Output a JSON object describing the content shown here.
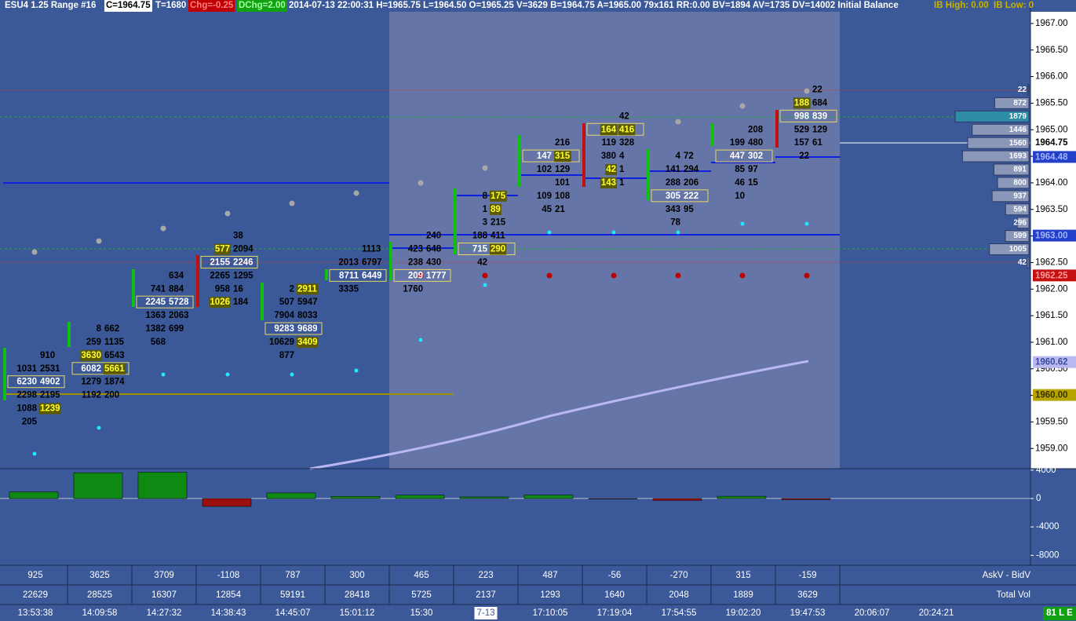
{
  "header": {
    "symbol": "ESU4  1.25 Range  #16",
    "close": "C=1964.75",
    "trades": "T=1680",
    "chg": "Chg=-0.25",
    "dchg": "DChg=2.00",
    "info": "2014-07-13 22:00:31 H=1965.75 L=1964.50 O=1965.25 V=3629 B=1964.75 A=1965.00 79x161 RR:0.00 BV=1894 AV=1735 DV=14002 Initial Balance",
    "ib_high": "IB High: 0.00",
    "ib_low": "IB Low: 0"
  },
  "price_axis": {
    "ylim": [
      1958.62,
      1967.22
    ],
    "ticks": [
      {
        "value": 1967,
        "label": "1967.00"
      },
      {
        "value": 1966.5,
        "label": "1966.50"
      },
      {
        "value": 1966,
        "label": "1966.00"
      },
      {
        "value": 1965.5,
        "label": "1965.50"
      },
      {
        "value": 1965,
        "label": "1965.00"
      },
      {
        "value": 1964.5,
        "label": "1964.50"
      },
      {
        "value": 1964,
        "label": "1964.00"
      },
      {
        "value": 1963.5,
        "label": "1963.50"
      },
      {
        "value": 1963,
        "label": "1963.00"
      },
      {
        "value": 1962.5,
        "label": "1962.50"
      },
      {
        "value": 1962,
        "label": "1962.00"
      },
      {
        "value": 1961.5,
        "label": "1961.50"
      },
      {
        "value": 1961,
        "label": "1961.00"
      },
      {
        "value": 1960.5,
        "label": "1960.50"
      },
      {
        "value": 1960,
        "label": "1960.00"
      },
      {
        "value": 1959.5,
        "label": "1959.50"
      },
      {
        "value": 1959,
        "label": "1959.00"
      }
    ],
    "markers": [
      {
        "value": 1964.75,
        "label": "1964.75",
        "bg": "#ffffff",
        "fg": "#000000"
      },
      {
        "value": 1964.48,
        "label": "1964.48",
        "bg": "#2440c8",
        "fg": "#9fb4ff"
      },
      {
        "value": 1963,
        "label": "1963.00",
        "bg": "#2440c8",
        "fg": "#9fb4ff"
      },
      {
        "value": 1962.25,
        "label": "1962.25",
        "bg": "#c41010",
        "fg": "#ff9a9a"
      },
      {
        "value": 1960.62,
        "label": "1960.62",
        "bg": "#b9b8f2",
        "fg": "#3b4d9a"
      },
      {
        "value": 1960,
        "label": "1960.00",
        "bg": "#b8a400",
        "fg": "#3a3300"
      }
    ]
  },
  "footprint": {
    "columns": [
      {
        "cells": [
          {
            "price": 1960.75,
            "ask": "910"
          },
          {
            "price": 1960.5,
            "bid": "1031",
            "ask": "2531"
          },
          {
            "price": 1960.25,
            "bid": "6230",
            "ask": "4902",
            "box": true
          },
          {
            "price": 1960,
            "bid": "2298",
            "ask": "2195"
          },
          {
            "price": 1959.75,
            "bid": "1088",
            "ask": "1239",
            "hl": "ask"
          },
          {
            "price": 1959.5,
            "bid": "205"
          }
        ]
      },
      {
        "cells": [
          {
            "price": 1961.25,
            "bid": "8",
            "ask": "662"
          },
          {
            "price": 1961,
            "bid": "259",
            "ask": "1135"
          },
          {
            "price": 1960.75,
            "bid": "3630",
            "ask": "6543",
            "hl": "bid"
          },
          {
            "price": 1960.5,
            "bid": "6082",
            "ask": "5661",
            "box": true,
            "hl": "ask"
          },
          {
            "price": 1960.25,
            "bid": "1279",
            "ask": "1874"
          },
          {
            "price": 1960,
            "bid": "1192",
            "ask": "200"
          }
        ]
      },
      {
        "cells": [
          {
            "price": 1962.25,
            "ask": "634"
          },
          {
            "price": 1962,
            "bid": "741",
            "ask": "884"
          },
          {
            "price": 1961.75,
            "bid": "2245",
            "ask": "5728",
            "box": true
          },
          {
            "price": 1961.5,
            "bid": "1363",
            "ask": "2063"
          },
          {
            "price": 1961.25,
            "bid": "1382",
            "ask": "699"
          },
          {
            "price": 1961,
            "bid": "568"
          }
        ]
      },
      {
        "cells": [
          {
            "price": 1963,
            "ask": "38"
          },
          {
            "price": 1962.75,
            "bid": "577",
            "ask": "2094",
            "hl": "bid"
          },
          {
            "price": 1962.5,
            "bid": "2155",
            "ask": "2246",
            "box": true
          },
          {
            "price": 1962.25,
            "bid": "2265",
            "ask": "1295"
          },
          {
            "price": 1962,
            "bid": "958",
            "ask": "16"
          },
          {
            "price": 1961.75,
            "bid": "1026",
            "ask": "184",
            "hl": "bid"
          }
        ]
      },
      {
        "cells": [
          {
            "price": 1962,
            "bid": "2",
            "ask": "2911",
            "hl": "ask"
          },
          {
            "price": 1961.75,
            "bid": "507",
            "ask": "5947"
          },
          {
            "price": 1961.5,
            "bid": "7904",
            "ask": "8033"
          },
          {
            "price": 1961.25,
            "bid": "9283",
            "ask": "9689",
            "box": true
          },
          {
            "price": 1961,
            "bid": "10629",
            "ask": "3409",
            "hl": "ask"
          },
          {
            "price": 1960.75,
            "bid": "877"
          }
        ]
      },
      {
        "cells": [
          {
            "price": 1962.75,
            "ask": "1113"
          },
          {
            "price": 1962.5,
            "bid": "2013",
            "ask": "6797"
          },
          {
            "price": 1962.25,
            "bid": "8711",
            "ask": "6449",
            "box": true
          },
          {
            "price": 1962,
            "bid": "3335"
          }
        ]
      },
      {
        "cells": [
          {
            "price": 1963,
            "ask": "240"
          },
          {
            "price": 1962.75,
            "bid": "423",
            "ask": "648"
          },
          {
            "price": 1962.5,
            "bid": "238",
            "ask": "430"
          },
          {
            "price": 1962.25,
            "bid": "209",
            "ask": "1777",
            "box": true
          },
          {
            "price": 1962,
            "bid": "1760"
          }
        ]
      },
      {
        "cells": [
          {
            "price": 1963.75,
            "bid": "8",
            "ask": "175",
            "hl": "ask"
          },
          {
            "price": 1963.5,
            "bid": "1",
            "ask": "89",
            "hl": "ask"
          },
          {
            "price": 1963.25,
            "bid": "3",
            "ask": "215"
          },
          {
            "price": 1963,
            "bid": "188",
            "ask": "411"
          },
          {
            "price": 1962.75,
            "bid": "715",
            "ask": "290",
            "box": true,
            "hl": "ask"
          },
          {
            "price": 1962.5,
            "bid": "42"
          }
        ]
      },
      {
        "cells": [
          {
            "price": 1964.75,
            "ask": "216"
          },
          {
            "price": 1964.5,
            "bid": "147",
            "ask": "315",
            "box": true,
            "hl": "ask"
          },
          {
            "price": 1964.25,
            "bid": "102",
            "ask": "129"
          },
          {
            "price": 1964,
            "ask": "101"
          },
          {
            "price": 1963.75,
            "bid": "109",
            "ask": "108"
          },
          {
            "price": 1963.5,
            "bid": "45",
            "ask": "21"
          }
        ]
      },
      {
        "cells": [
          {
            "price": 1965.25,
            "ask": "42"
          },
          {
            "price": 1965,
            "bid": "164",
            "ask": "416",
            "box": true,
            "hl": "both"
          },
          {
            "price": 1964.75,
            "bid": "119",
            "ask": "328"
          },
          {
            "price": 1964.5,
            "bid": "380",
            "ask": "4"
          },
          {
            "price": 1964.25,
            "bid": "42",
            "ask": "1",
            "hl": "bid"
          },
          {
            "price": 1964,
            "bid": "143",
            "ask": "1",
            "hl": "bid"
          }
        ]
      },
      {
        "cells": [
          {
            "price": 1964.5,
            "bid": "4",
            "ask": "72"
          },
          {
            "price": 1964.25,
            "bid": "141",
            "ask": "294"
          },
          {
            "price": 1964,
            "bid": "288",
            "ask": "206"
          },
          {
            "price": 1963.75,
            "bid": "305",
            "ask": "222",
            "box": true
          },
          {
            "price": 1963.5,
            "bid": "343",
            "ask": "95"
          },
          {
            "price": 1963.25,
            "bid": "78"
          }
        ]
      },
      {
        "cells": [
          {
            "price": 1965,
            "ask": "208"
          },
          {
            "price": 1964.75,
            "bid": "199",
            "ask": "480"
          },
          {
            "price": 1964.5,
            "bid": "447",
            "ask": "302",
            "box": true
          },
          {
            "price": 1964.25,
            "bid": "85",
            "ask": "97"
          },
          {
            "price": 1964,
            "bid": "46",
            "ask": "15"
          },
          {
            "price": 1963.75,
            "bid": "10"
          }
        ]
      },
      {
        "cells": [
          {
            "price": 1965.75,
            "ask": "22"
          },
          {
            "price": 1965.5,
            "bid": "188",
            "ask": "684",
            "hl": "bid"
          },
          {
            "price": 1965.25,
            "bid": "998",
            "ask": "839",
            "box": true
          },
          {
            "price": 1965,
            "bid": "529",
            "ask": "129"
          },
          {
            "price": 1964.75,
            "bid": "157",
            "ask": "61"
          },
          {
            "price": 1964.5,
            "bid": "22"
          }
        ]
      }
    ]
  },
  "volume_profile": {
    "color": "#8b97b8",
    "poc_color": "#2f8ca6",
    "levels": [
      {
        "price": 1965.75,
        "volume": 22
      },
      {
        "price": 1965.5,
        "volume": 872
      },
      {
        "price": 1965.25,
        "volume": 1879
      },
      {
        "price": 1965,
        "volume": 1446
      },
      {
        "price": 1964.75,
        "volume": 1560
      },
      {
        "price": 1964.5,
        "volume": 1693
      },
      {
        "price": 1964.25,
        "volume": 891
      },
      {
        "price": 1964,
        "volume": 800
      },
      {
        "price": 1963.75,
        "volume": 937
      },
      {
        "price": 1963.5,
        "volume": 594
      },
      {
        "price": 1963.25,
        "volume": 296
      },
      {
        "price": 1963,
        "volume": 599
      },
      {
        "price": 1962.75,
        "volume": 1005
      },
      {
        "price": 1962.5,
        "volume": 42
      }
    ]
  },
  "delta_pane": {
    "ylim": [
      -9400,
      4200
    ],
    "yticks": [
      4000,
      0,
      -4000,
      -8000
    ],
    "up_color": "#0e8a12",
    "down_color": "#9a1010"
  },
  "table": {
    "row_labels": [
      "AskV - BidV",
      "Total Vol"
    ],
    "delta": [
      925,
      3625,
      3709,
      -1108,
      787,
      300,
      465,
      223,
      487,
      -56,
      -270,
      315,
      -159
    ],
    "total_vol": [
      22629,
      28525,
      16307,
      12854,
      59191,
      28418,
      5725,
      2137,
      1293,
      1640,
      2048,
      1889,
      3629
    ]
  },
  "time_axis": [
    "13:53:38",
    "14:09:58",
    "14:27:32",
    "14:38:43",
    "14:45:07",
    "15:01:12",
    "15:30",
    "7-13",
    "17:10:05",
    "17:19:04",
    "17:54:55",
    "19:02:20",
    "19:47:53",
    "20:06:07",
    "20:24:21"
  ],
  "status": "81 L E"
}
